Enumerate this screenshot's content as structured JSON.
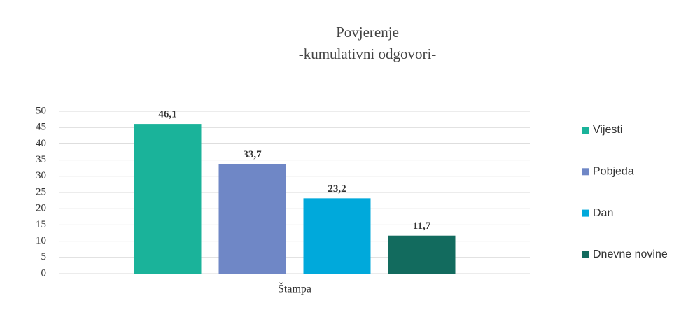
{
  "chart_data": {
    "type": "bar",
    "title": "Povjerenje",
    "subtitle": "-kumulativni odgovori-",
    "categories": [
      "Štampa"
    ],
    "series": [
      {
        "name": "Vijesti",
        "color": "#1ab39a",
        "values": [
          46.1
        ],
        "value_labels": [
          "46,1"
        ]
      },
      {
        "name": "Pobjeda",
        "color": "#6f87c6",
        "values": [
          33.7
        ],
        "value_labels": [
          "33,7"
        ]
      },
      {
        "name": "Dan",
        "color": "#00a9db",
        "values": [
          23.2
        ],
        "value_labels": [
          "23,2"
        ]
      },
      {
        "name": "Dnevne novine",
        "color": "#126b5e",
        "values": [
          11.7
        ],
        "value_labels": [
          "11,7"
        ]
      }
    ],
    "ylim": [
      0,
      50
    ],
    "yticks": [
      0,
      5,
      10,
      15,
      20,
      25,
      30,
      35,
      40,
      45,
      50
    ],
    "grid": true,
    "legend": "right"
  }
}
